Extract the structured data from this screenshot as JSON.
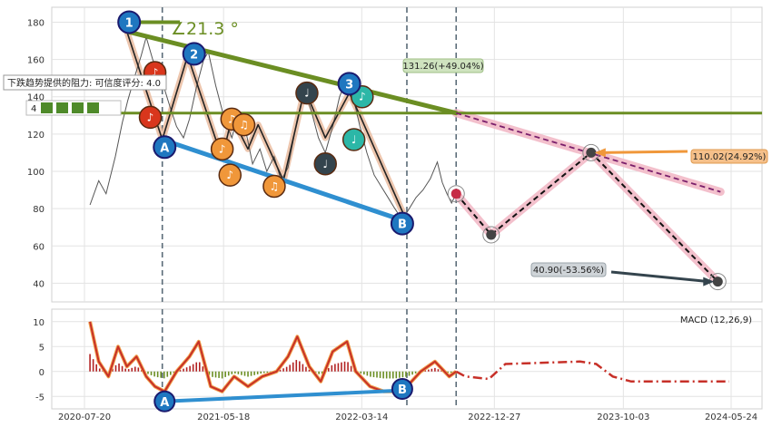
{
  "chart_data": [
    {
      "type": "line",
      "panel": "price",
      "ylim": [
        30,
        188
      ],
      "yticks": [
        40,
        60,
        80,
        100,
        120,
        140,
        160,
        180
      ],
      "x_range": [
        "2020-07-20",
        "2024-06-20"
      ],
      "x_tick_labels": [
        "2020-07-20",
        "2021-05-18",
        "2022-03-14",
        "2022-12-27",
        "2023-10-03",
        "2024-05-24"
      ],
      "grid": true,
      "price_series": [
        {
          "x": "2020-08-01",
          "y": 82
        },
        {
          "x": "2020-08-20",
          "y": 95
        },
        {
          "x": "2020-09-05",
          "y": 88
        },
        {
          "x": "2020-09-25",
          "y": 108
        },
        {
          "x": "2020-10-10",
          "y": 126
        },
        {
          "x": "2020-10-22",
          "y": 138
        },
        {
          "x": "2020-11-05",
          "y": 150
        },
        {
          "x": "2020-11-20",
          "y": 162
        },
        {
          "x": "2020-12-01",
          "y": 172
        },
        {
          "x": "2020-12-15",
          "y": 160
        },
        {
          "x": "2021-01-05",
          "y": 148
        },
        {
          "x": "2021-01-20",
          "y": 136
        },
        {
          "x": "2021-02-05",
          "y": 124
        },
        {
          "x": "2021-02-20",
          "y": 118
        },
        {
          "x": "2021-03-05",
          "y": 128
        },
        {
          "x": "2021-03-20",
          "y": 145
        },
        {
          "x": "2021-04-05",
          "y": 160
        },
        {
          "x": "2021-04-15",
          "y": 164
        },
        {
          "x": "2021-05-01",
          "y": 146
        },
        {
          "x": "2021-05-20",
          "y": 128
        },
        {
          "x": "2021-06-05",
          "y": 118
        },
        {
          "x": "2021-06-20",
          "y": 132
        },
        {
          "x": "2021-07-05",
          "y": 122
        },
        {
          "x": "2021-07-20",
          "y": 104
        },
        {
          "x": "2021-08-05",
          "y": 112
        },
        {
          "x": "2021-08-20",
          "y": 100
        },
        {
          "x": "2021-09-05",
          "y": 108
        },
        {
          "x": "2021-09-20",
          "y": 95
        },
        {
          "x": "2021-10-05",
          "y": 102
        },
        {
          "x": "2021-10-25",
          "y": 128
        },
        {
          "x": "2021-11-10",
          "y": 144
        },
        {
          "x": "2021-11-25",
          "y": 132
        },
        {
          "x": "2021-12-10",
          "y": 118
        },
        {
          "x": "2021-12-25",
          "y": 110
        },
        {
          "x": "2022-01-10",
          "y": 124
        },
        {
          "x": "2022-01-25",
          "y": 140
        },
        {
          "x": "2022-02-10",
          "y": 150
        },
        {
          "x": "2022-02-25",
          "y": 138
        },
        {
          "x": "2022-03-10",
          "y": 124
        },
        {
          "x": "2022-03-25",
          "y": 110
        },
        {
          "x": "2022-04-10",
          "y": 98
        },
        {
          "x": "2022-04-25",
          "y": 92
        },
        {
          "x": "2022-05-10",
          "y": 86
        },
        {
          "x": "2022-05-25",
          "y": 80
        },
        {
          "x": "2022-06-10",
          "y": 74
        },
        {
          "x": "2022-06-25",
          "y": 80
        },
        {
          "x": "2022-07-10",
          "y": 86
        },
        {
          "x": "2022-07-25",
          "y": 90
        },
        {
          "x": "2022-08-10",
          "y": 96
        },
        {
          "x": "2022-08-25",
          "y": 105
        },
        {
          "x": "2022-09-05",
          "y": 94
        },
        {
          "x": "2022-09-15",
          "y": 88
        },
        {
          "x": "2022-09-25",
          "y": 83
        },
        {
          "x": "2022-10-05",
          "y": 88
        }
      ],
      "zigzag_points": [
        {
          "x": "2020-10-20",
          "y": 175
        },
        {
          "x": "2021-01-05",
          "y": 117
        },
        {
          "x": "2021-03-01",
          "y": 162
        },
        {
          "x": "2021-05-15",
          "y": 107
        },
        {
          "x": "2021-06-05",
          "y": 129
        },
        {
          "x": "2021-07-10",
          "y": 112
        },
        {
          "x": "2021-08-01",
          "y": 125
        },
        {
          "x": "2021-09-25",
          "y": 95
        },
        {
          "x": "2021-11-10",
          "y": 144
        },
        {
          "x": "2021-12-25",
          "y": 118
        },
        {
          "x": "2022-02-15",
          "y": 142
        },
        {
          "x": "2022-03-10",
          "y": 130
        },
        {
          "x": "2022-06-20",
          "y": 73
        }
      ],
      "forecast_path": [
        {
          "x": "2022-10-05",
          "y": 88
        },
        {
          "x": "2022-12-20",
          "y": 66
        },
        {
          "x": "2023-07-25",
          "y": 110.02
        },
        {
          "x": "2024-04-25",
          "y": 40.9
        }
      ],
      "resistance_line": [
        {
          "x": "2022-10-05",
          "y": 131.26
        },
        {
          "x": "2024-05-01",
          "y": 89
        }
      ],
      "trend_lines": {
        "upper": [
          {
            "x": "2020-10-20",
            "y": 175
          },
          {
            "x": "2022-10-05",
            "y": 131.26
          }
        ],
        "horizontal_y": 131.26,
        "lower": [
          {
            "x": "2021-01-05",
            "y": 117
          },
          {
            "x": "2022-06-20",
            "y": 73
          }
        ]
      },
      "vlines": [
        "2021-01-05",
        "2022-06-20",
        "2022-10-05"
      ],
      "nodes": [
        {
          "label": "1",
          "x": "2020-10-25",
          "y": 180
        },
        {
          "label": "2",
          "x": "2021-03-15",
          "y": 163
        },
        {
          "label": "3",
          "x": "2022-02-15",
          "y": 147
        },
        {
          "label": "A",
          "x": "2021-01-10",
          "y": 113
        },
        {
          "label": "B",
          "x": "2022-06-10",
          "y": 72
        }
      ],
      "annotations": {
        "angle": "∠21.3 °",
        "resistance_price": "131.26(+49.04%)",
        "target_high": "110.02(24.92%)",
        "target_low": "40.90(-53.56%)",
        "tooltip_title": "下跌趋势提供的阻力: 可信度评分: 4.0",
        "tooltip_row": "4"
      },
      "colors": {
        "price_line": "#555555",
        "trend_green": "#6b8e23",
        "trend_blue": "#2f8fd0",
        "pink_band": "#f2b9c6",
        "forecast_dash": "#111111",
        "node_blue": "#1f77c0",
        "note_orange": "#f0973a",
        "note_red": "#d9361c",
        "note_dark": "#34444d",
        "note_teal": "#2cb7a7"
      }
    },
    {
      "type": "line",
      "panel": "macd",
      "title": "MACD (12,26,9)",
      "ylim": [
        -7.5,
        12.5
      ],
      "yticks": [
        -5,
        0,
        5,
        10
      ],
      "macd_series": [
        {
          "x": "2020-08-01",
          "y": 10
        },
        {
          "x": "2020-08-20",
          "y": 2
        },
        {
          "x": "2020-09-10",
          "y": -1
        },
        {
          "x": "2020-10-01",
          "y": 5
        },
        {
          "x": "2020-10-20",
          "y": 1
        },
        {
          "x": "2020-11-10",
          "y": 3
        },
        {
          "x": "2020-12-01",
          "y": -1
        },
        {
          "x": "2020-12-20",
          "y": -3
        },
        {
          "x": "2021-01-10",
          "y": -4
        },
        {
          "x": "2021-02-05",
          "y": 0
        },
        {
          "x": "2021-03-05",
          "y": 3
        },
        {
          "x": "2021-03-25",
          "y": 6
        },
        {
          "x": "2021-04-20",
          "y": -3
        },
        {
          "x": "2021-05-15",
          "y": -4
        },
        {
          "x": "2021-06-10",
          "y": -1
        },
        {
          "x": "2021-07-10",
          "y": -3
        },
        {
          "x": "2021-08-10",
          "y": -1
        },
        {
          "x": "2021-09-10",
          "y": 0
        },
        {
          "x": "2021-10-05",
          "y": 3
        },
        {
          "x": "2021-10-25",
          "y": 7
        },
        {
          "x": "2021-11-20",
          "y": 1
        },
        {
          "x": "2021-12-15",
          "y": -2
        },
        {
          "x": "2022-01-10",
          "y": 4
        },
        {
          "x": "2022-02-10",
          "y": 6
        },
        {
          "x": "2022-03-01",
          "y": 0
        },
        {
          "x": "2022-04-01",
          "y": -3
        },
        {
          "x": "2022-05-01",
          "y": -4
        },
        {
          "x": "2022-05-25",
          "y": -4
        },
        {
          "x": "2022-06-20",
          "y": -3
        },
        {
          "x": "2022-07-20",
          "y": 0
        },
        {
          "x": "2022-08-20",
          "y": 2
        },
        {
          "x": "2022-09-20",
          "y": -1
        },
        {
          "x": "2022-10-05",
          "y": 0
        }
      ],
      "macd_forecast": [
        {
          "x": "2022-10-05",
          "y": 0
        },
        {
          "x": "2022-10-25",
          "y": -1
        },
        {
          "x": "2022-12-15",
          "y": -1.5
        },
        {
          "x": "2023-01-20",
          "y": 1.5
        },
        {
          "x": "2023-07-01",
          "y": 2
        },
        {
          "x": "2023-08-05",
          "y": 1.5
        },
        {
          "x": "2023-09-10",
          "y": -1
        },
        {
          "x": "2023-10-20",
          "y": -2
        },
        {
          "x": "2024-05-20",
          "y": -2
        }
      ],
      "divergence_line": [
        {
          "x": "2021-01-10",
          "y": -6
        },
        {
          "x": "2022-06-10",
          "y": -3.8
        }
      ],
      "nodes": [
        {
          "label": "A",
          "x": "2021-01-10",
          "y": -6
        },
        {
          "label": "B",
          "x": "2022-06-10",
          "y": -3.5
        }
      ]
    }
  ]
}
